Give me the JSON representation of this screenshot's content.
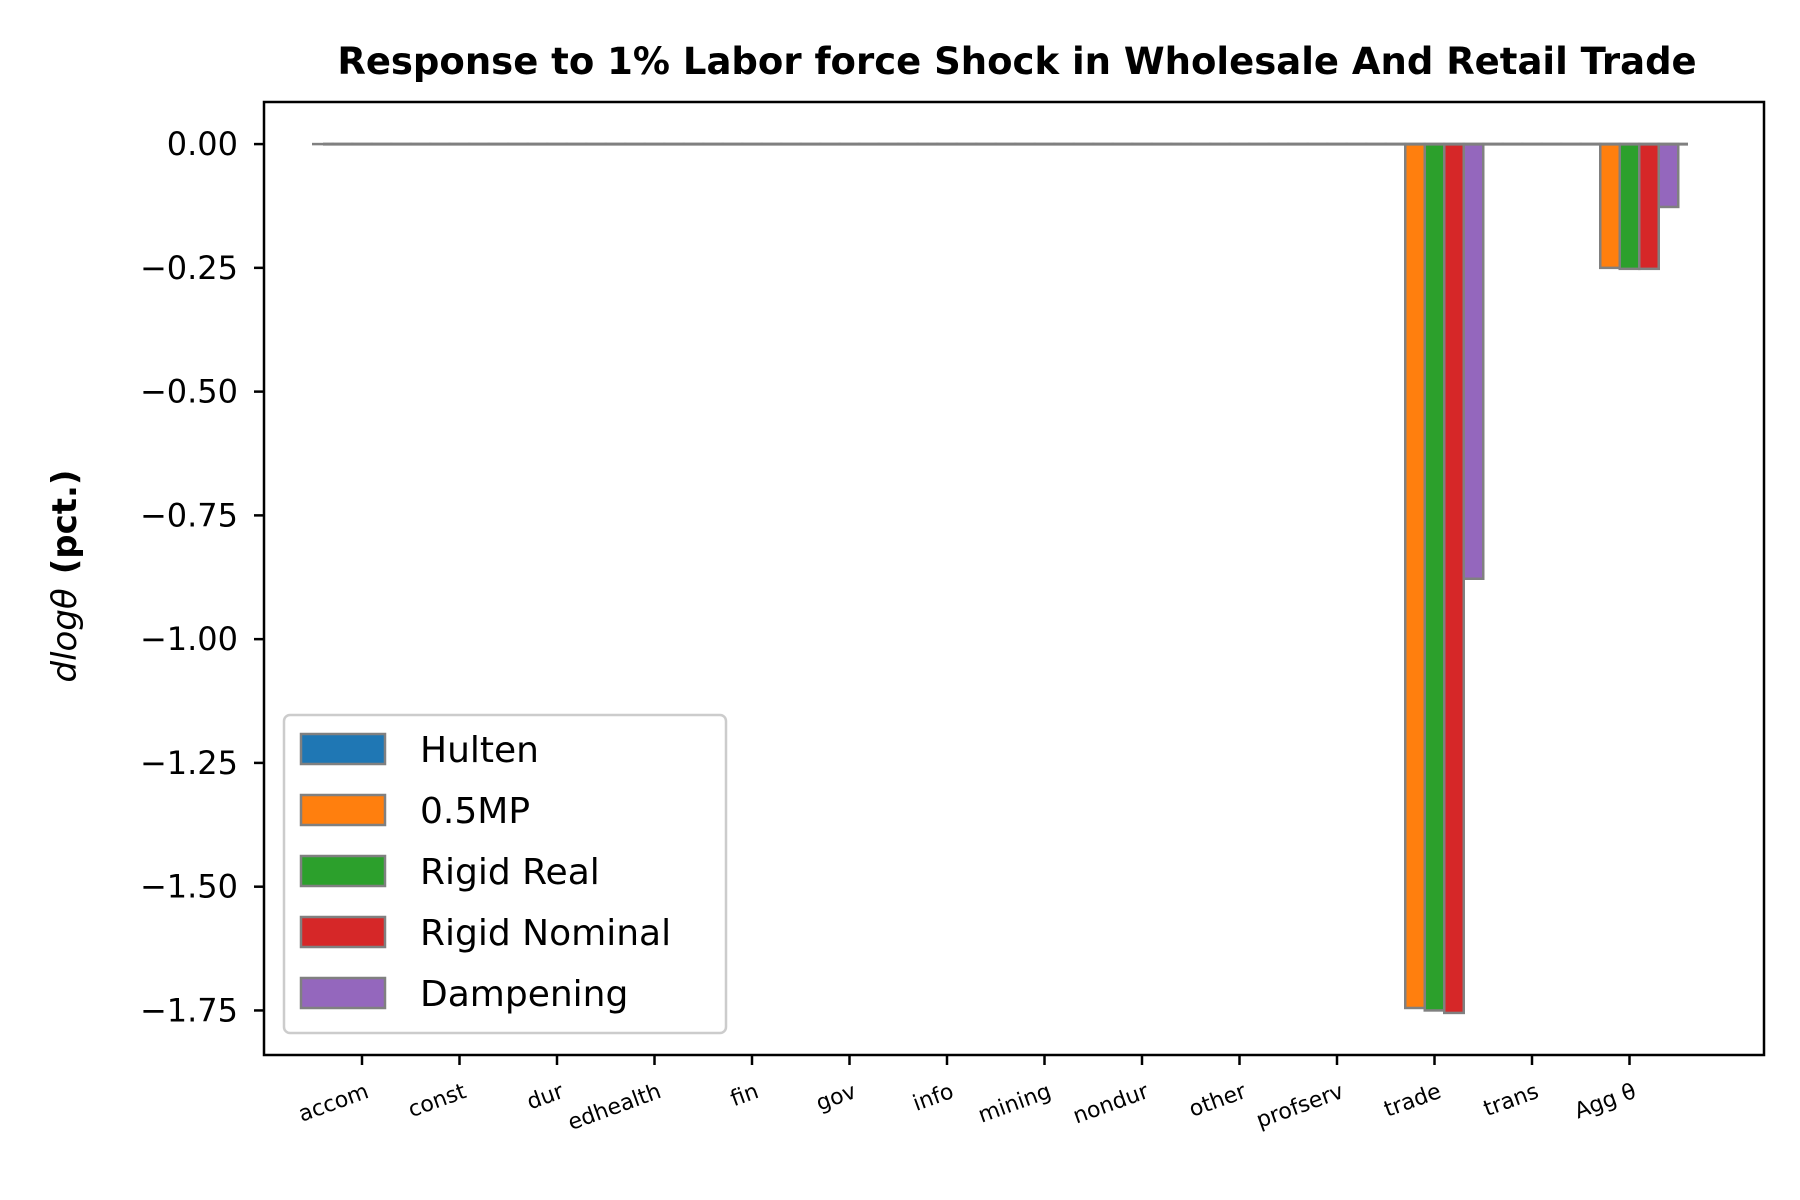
{
  "chart_data": {
    "type": "bar",
    "title": "Response to 1% Labor force Shock in Wholesale And Retail Trade",
    "ylabel": "d log θ (pct.)",
    "ylabel_parts": {
      "math": "dlogθ",
      "bold": "(pct.)"
    },
    "xlabel": "",
    "ylim": [
      -1.84,
      0.085
    ],
    "yticks": [
      0.0,
      -0.25,
      -0.5,
      -0.75,
      -1.0,
      -1.25,
      -1.5,
      -1.75
    ],
    "ytick_labels": [
      "0.00",
      "−0.25",
      "−0.50",
      "−0.75",
      "−1.00",
      "−1.25",
      "−1.50",
      "−1.75"
    ],
    "categories": [
      "accom",
      "const",
      "dur",
      "edhealth",
      "fin",
      "gov",
      "info",
      "mining",
      "nondur",
      "other",
      "profserv",
      "trade",
      "trans",
      "Agg θ"
    ],
    "series": [
      {
        "name": "Hulten",
        "color": "#1f77b4",
        "values": [
          0,
          0,
          0,
          0,
          0,
          0,
          0,
          0,
          0,
          0,
          0,
          0,
          0,
          0
        ]
      },
      {
        "name": "0.5MP",
        "color": "#ff7f0e",
        "values": [
          0,
          0,
          0,
          0,
          0,
          0,
          0,
          0,
          0,
          0,
          0,
          -1.745,
          0,
          -0.25
        ]
      },
      {
        "name": "Rigid Real",
        "color": "#2ca02c",
        "values": [
          0,
          0,
          0,
          0,
          0,
          0,
          0,
          0,
          0,
          0,
          0,
          -1.75,
          0,
          -0.252
        ]
      },
      {
        "name": "Rigid Nominal",
        "color": "#d62728",
        "values": [
          0,
          0,
          0,
          0,
          0,
          0,
          0,
          0,
          0,
          0,
          0,
          -1.755,
          0,
          -0.252
        ]
      },
      {
        "name": "Dampening",
        "color": "#9467bd",
        "values": [
          0,
          0,
          0,
          0,
          0,
          0,
          0,
          0,
          0,
          0,
          0,
          -0.878,
          0,
          -0.127
        ]
      }
    ],
    "legend_position": "lower-left",
    "grid": false
  }
}
